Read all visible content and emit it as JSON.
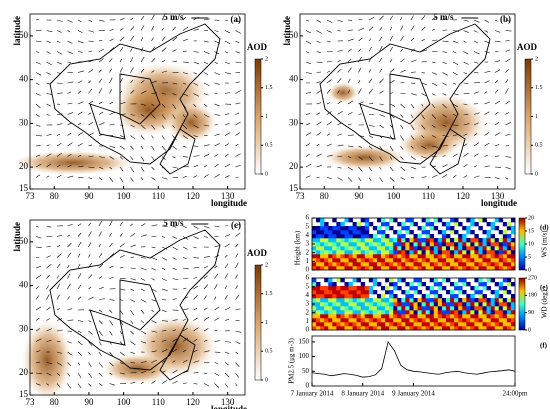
{
  "maps": [
    {
      "label": "(a)",
      "wind_scale": "5 m/s",
      "y_axis_label": "latitude",
      "x_axis_label": "longitude",
      "colorbar_label": "AOD"
    },
    {
      "label": "(b)",
      "wind_scale": "5 m/s",
      "y_axis_label": "latitude",
      "x_axis_label": "longitude",
      "colorbar_label": "AOD"
    },
    {
      "label": "(c)",
      "wind_scale": "5 m/s",
      "y_axis_label": "latitude",
      "x_axis_label": "longitude",
      "colorbar_label": "AOD"
    }
  ],
  "map_axes": {
    "xlim": [
      73,
      135
    ],
    "ylim": [
      15,
      55
    ],
    "xticks": [
      73,
      80,
      90,
      100,
      110,
      120,
      130
    ],
    "yticks": [
      15,
      20,
      30,
      40,
      50
    ],
    "colorbar_lim": [
      0,
      2
    ],
    "colorbar_ticks": [
      0,
      0.5,
      1,
      1.5,
      2
    ]
  },
  "profiles": [
    {
      "label": "(d)",
      "colorbar_label": "WS (m/s)",
      "clim": [
        0,
        20
      ],
      "cticks": [
        0,
        5,
        10,
        15,
        20
      ]
    },
    {
      "label": "(e)",
      "colorbar_label": "WD (deg)",
      "clim": [
        0,
        270
      ],
      "cticks": [
        0,
        90,
        180,
        270
      ]
    }
  ],
  "profile_axes": {
    "y_axis_label": "Height (km)",
    "ylim": [
      0,
      6
    ],
    "yticks": [
      0,
      1,
      2,
      3,
      4,
      5,
      6
    ]
  },
  "chart_data": {
    "type": "line",
    "label": "(f)",
    "y_axis_label": "PM2.5 (μg m-3)",
    "color": "#000000",
    "x": [
      0,
      3,
      6,
      9,
      12,
      15,
      18,
      21,
      24,
      27,
      30,
      33,
      36,
      39,
      42,
      45,
      48,
      51,
      54,
      57,
      60,
      63,
      66,
      69,
      72,
      75,
      78,
      81,
      84,
      87,
      90,
      93,
      96
    ],
    "values": [
      45,
      42,
      40,
      35,
      38,
      42,
      40,
      36,
      30,
      32,
      38,
      60,
      150,
      120,
      70,
      55,
      50,
      48,
      45,
      42,
      40,
      45,
      48,
      50,
      45,
      42,
      40,
      44,
      48,
      50,
      52,
      55,
      50
    ],
    "xlim": [
      0,
      96
    ],
    "xticks": [
      {
        "value": 0,
        "label": "7 January 2014"
      },
      {
        "value": 24,
        "label": "8 January 2014"
      },
      {
        "value": 48,
        "label": "9 January 2014"
      },
      {
        "value": 96,
        "label": "24:00pm"
      }
    ],
    "ylim": [
      0,
      170
    ],
    "yticks": [
      0,
      50,
      100,
      150
    ]
  }
}
